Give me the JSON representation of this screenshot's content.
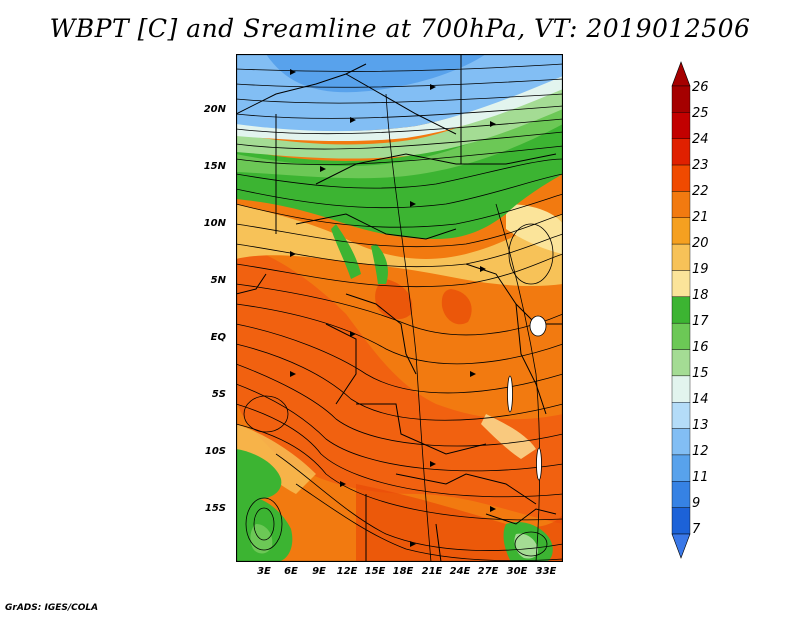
{
  "title": "WBPT [C] and Sreamline at 700hPa, VT: 2019012506",
  "credit": "GrADS: IGES/COLA",
  "map": {
    "lat_labels": [
      "20N",
      "15N",
      "10N",
      "5N",
      "EQ",
      "5S",
      "10S",
      "15S"
    ],
    "lon_labels": [
      "3E",
      "6E",
      "9E",
      "12E",
      "15E",
      "18E",
      "21E",
      "24E",
      "27E",
      "30E",
      "33E"
    ]
  },
  "colorbar": {
    "labels": [
      "26",
      "25",
      "24",
      "23",
      "22",
      "21",
      "20",
      "19",
      "18",
      "17",
      "16",
      "15",
      "14",
      "13",
      "12",
      "11",
      "9",
      "7"
    ],
    "colors": [
      "#a50000",
      "#c20000",
      "#e02000",
      "#f04a00",
      "#f27a10",
      "#f5a020",
      "#f7c258",
      "#fbe49a",
      "#3cb432",
      "#6cc856",
      "#a4dc94",
      "#e2f4ee",
      "#b4dcf8",
      "#82bef4",
      "#58a2ec",
      "#3682e4",
      "#1c62d8"
    ]
  }
}
